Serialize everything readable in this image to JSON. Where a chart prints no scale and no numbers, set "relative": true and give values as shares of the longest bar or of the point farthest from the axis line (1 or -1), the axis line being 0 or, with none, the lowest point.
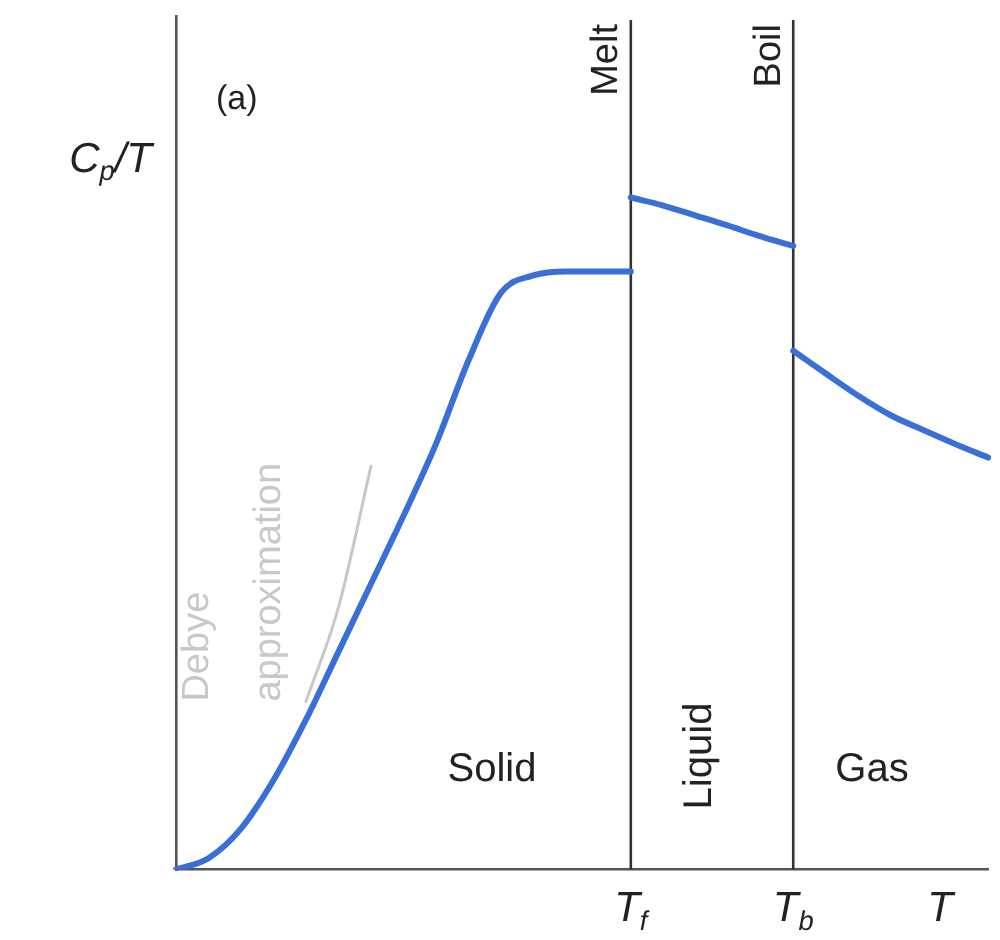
{
  "chart_data": {
    "type": "line",
    "relative": true,
    "ylabel": "C$_{p}$/T",
    "xlabel": "T",
    "categories": [
      null,
      null,
      null,
      null,
      null,
      null,
      null,
      null,
      null,
      null,
      null,
      null,
      null,
      null,
      "T$_{f}$",
      null,
      null,
      null,
      null,
      "T$_{b}$",
      null,
      null,
      null,
      null,
      null,
      null
    ],
    "series": [
      {
        "color": "#3a6fd8",
        "values": [
          0,
          0.017,
          0.061,
          0.133,
          0.223,
          0.324,
          0.425,
          0.526,
          0.633,
          0.757,
          0.858,
          0.884,
          0.89,
          0.89,
          0.89,
          null,
          null,
          null,
          null,
          null,
          null,
          null,
          null,
          null,
          null,
          null
        ]
      },
      {
        "color": "#3a6fd8",
        "values": [
          null,
          null,
          null,
          null,
          null,
          null,
          null,
          null,
          null,
          null,
          null,
          null,
          null,
          null,
          1,
          0.988,
          0.973,
          0.958,
          0.942,
          0.928,
          null,
          null,
          null,
          null,
          null,
          null
        ]
      },
      {
        "color": "#3a6fd8",
        "values": [
          null,
          null,
          null,
          null,
          null,
          null,
          null,
          null,
          null,
          null,
          null,
          null,
          null,
          null,
          null,
          null,
          null,
          null,
          null,
          0.772,
          0.738,
          0.705,
          0.676,
          0.654,
          0.633,
          0.613
        ]
      },
      {
        "name": "Debye approximation",
        "color": "#c8c8c8",
        "values": [
          null,
          null,
          null,
          null,
          0.25,
          0.39,
          0.6,
          null,
          null,
          null,
          null,
          null,
          null,
          null,
          null,
          null,
          null,
          null,
          null,
          null,
          null,
          null,
          null,
          null,
          null,
          null
        ]
      }
    ],
    "ref_lines": [
      {
        "axis": "x",
        "value": "T$_{f}$",
        "label": "Melt",
        "color": "#333333"
      },
      {
        "axis": "x",
        "value": "T$_{b}$",
        "label": "Boil",
        "color": "#333333"
      }
    ],
    "annotations": [
      "(a)",
      "Solid",
      "Liquid",
      "Gas"
    ],
    "line_style": "solid",
    "marker": "none",
    "grid": false,
    "legend": false
  }
}
